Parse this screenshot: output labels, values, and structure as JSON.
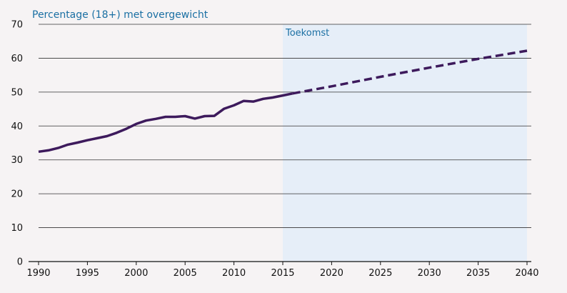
{
  "chart_data": {
    "type": "line",
    "title": "Percentage (18+) met overgewicht",
    "future_label": "Toekomst",
    "future_range": [
      2015,
      2040
    ],
    "xlim": [
      1990,
      2040
    ],
    "ylim": [
      0,
      70
    ],
    "x_ticks": [
      1990,
      1995,
      2000,
      2005,
      2010,
      2015,
      2020,
      2025,
      2030,
      2035,
      2040
    ],
    "y_ticks": [
      0,
      10,
      20,
      30,
      40,
      50,
      60,
      70
    ],
    "grid": "horizontal",
    "series": [
      {
        "style": "solid",
        "x": [
          1990,
          1991,
          1992,
          1993,
          1994,
          1995,
          1996,
          1997,
          1998,
          1999,
          2000,
          2001,
          2002,
          2003,
          2004,
          2005,
          2006,
          2007,
          2008,
          2009,
          2010,
          2011,
          2012,
          2013,
          2014,
          2015,
          2016
        ],
        "y": [
          32.4,
          32.8,
          33.5,
          34.5,
          35.1,
          35.8,
          36.4,
          37.0,
          38.0,
          39.2,
          40.6,
          41.6,
          42.1,
          42.7,
          42.7,
          42.9,
          42.2,
          42.9,
          43.0,
          45.1,
          46.1,
          47.4,
          47.2,
          48.0,
          48.4,
          49.0,
          49.6
        ]
      },
      {
        "style": "dashed",
        "x": [
          2016,
          2020,
          2025,
          2030,
          2035,
          2040
        ],
        "y": [
          49.6,
          51.7,
          54.5,
          57.2,
          59.8,
          62.2
        ]
      }
    ],
    "colors": {
      "line": "#3d1a5c",
      "future_band": "#e6eef8",
      "grid": "#333333",
      "axis": "#111111",
      "title": "#1a6fa3",
      "background": "#f6f3f4"
    }
  }
}
